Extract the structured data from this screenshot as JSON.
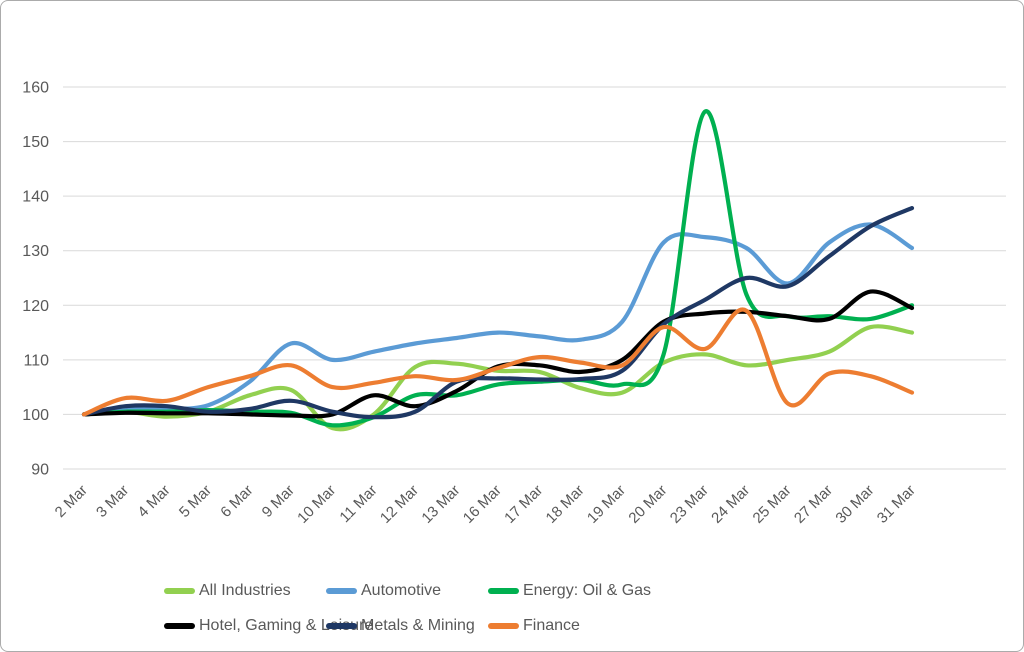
{
  "chart_data": {
    "type": "line",
    "title": "",
    "smoothed": true,
    "grid": "horizontal",
    "legend_position": "bottom",
    "categories": [
      "2 Mar",
      "3 Mar",
      "4 Mar",
      "5 Mar",
      "6 Mar",
      "9 Mar",
      "10 Mar",
      "11 Mar",
      "12 Mar",
      "13 Mar",
      "16 Mar",
      "17 Mar",
      "18 Mar",
      "19 Mar",
      "20 Mar",
      "23 Mar",
      "24 Mar",
      "25 Mar",
      "27 Mar",
      "30 Mar",
      "31 Mar"
    ],
    "y_axis": {
      "min": 90,
      "max": 160,
      "tick_step": 10,
      "tick_labels": [
        "90",
        "100",
        "110",
        "120",
        "130",
        "140",
        "150",
        "160"
      ]
    },
    "x_axis": {
      "label_rotation_deg": -45
    },
    "series": [
      {
        "name": "All Industries",
        "color": "#92d050",
        "values": [
          100,
          100.5,
          99.6,
          100.5,
          103.5,
          104.5,
          97.5,
          100,
          108.7,
          109.3,
          108,
          107.8,
          104.8,
          104,
          109.5,
          111,
          109,
          110,
          111.5,
          116,
          115
        ]
      },
      {
        "name": "Automotive",
        "color": "#5b9bd5",
        "values": [
          100,
          101,
          101,
          101.7,
          106,
          113,
          110,
          111.5,
          113,
          114,
          115,
          114.3,
          113.7,
          117,
          131.5,
          132.5,
          130.5,
          124,
          131.5,
          134.8,
          130.5
        ]
      },
      {
        "name": "Energy: Oil & Gas",
        "color": "#00b050",
        "values": [
          100,
          100.5,
          100.5,
          100.8,
          100.5,
          100.3,
          98,
          99.5,
          103.5,
          103.5,
          105.5,
          106,
          106.3,
          105.5,
          111,
          155.5,
          122,
          118,
          118,
          117.5,
          120
        ]
      },
      {
        "name": "Hotel, Gaming & Leisure",
        "color": "#000000",
        "values": [
          100,
          100.3,
          100.2,
          100.2,
          100,
          99.8,
          100,
          103.5,
          101.5,
          104.3,
          108.8,
          109,
          107.8,
          110,
          117,
          118.5,
          118.8,
          118,
          117.5,
          122.5,
          119.5
        ]
      },
      {
        "name": "Metals & Mining",
        "color": "#1f3864",
        "values": [
          100,
          101.5,
          101.5,
          100.5,
          101,
          102.5,
          100.5,
          99.5,
          100.5,
          106,
          106.6,
          106.4,
          106.5,
          108,
          116.5,
          121,
          125,
          123.5,
          129,
          134.5,
          137.8
        ]
      },
      {
        "name": "Finance",
        "color": "#ed7d31",
        "values": [
          100,
          103,
          102.5,
          105,
          107,
          109,
          105,
          105.8,
          107,
          106.3,
          108.5,
          110.5,
          109.5,
          109,
          116,
          112,
          119,
          102,
          107.5,
          107,
          104
        ]
      }
    ]
  },
  "styles": {
    "background": "#ffffff",
    "border_color": "#ababab",
    "grid_color": "#d9d9d9",
    "axis_label_color": "#595959",
    "line_width": 4.2
  }
}
